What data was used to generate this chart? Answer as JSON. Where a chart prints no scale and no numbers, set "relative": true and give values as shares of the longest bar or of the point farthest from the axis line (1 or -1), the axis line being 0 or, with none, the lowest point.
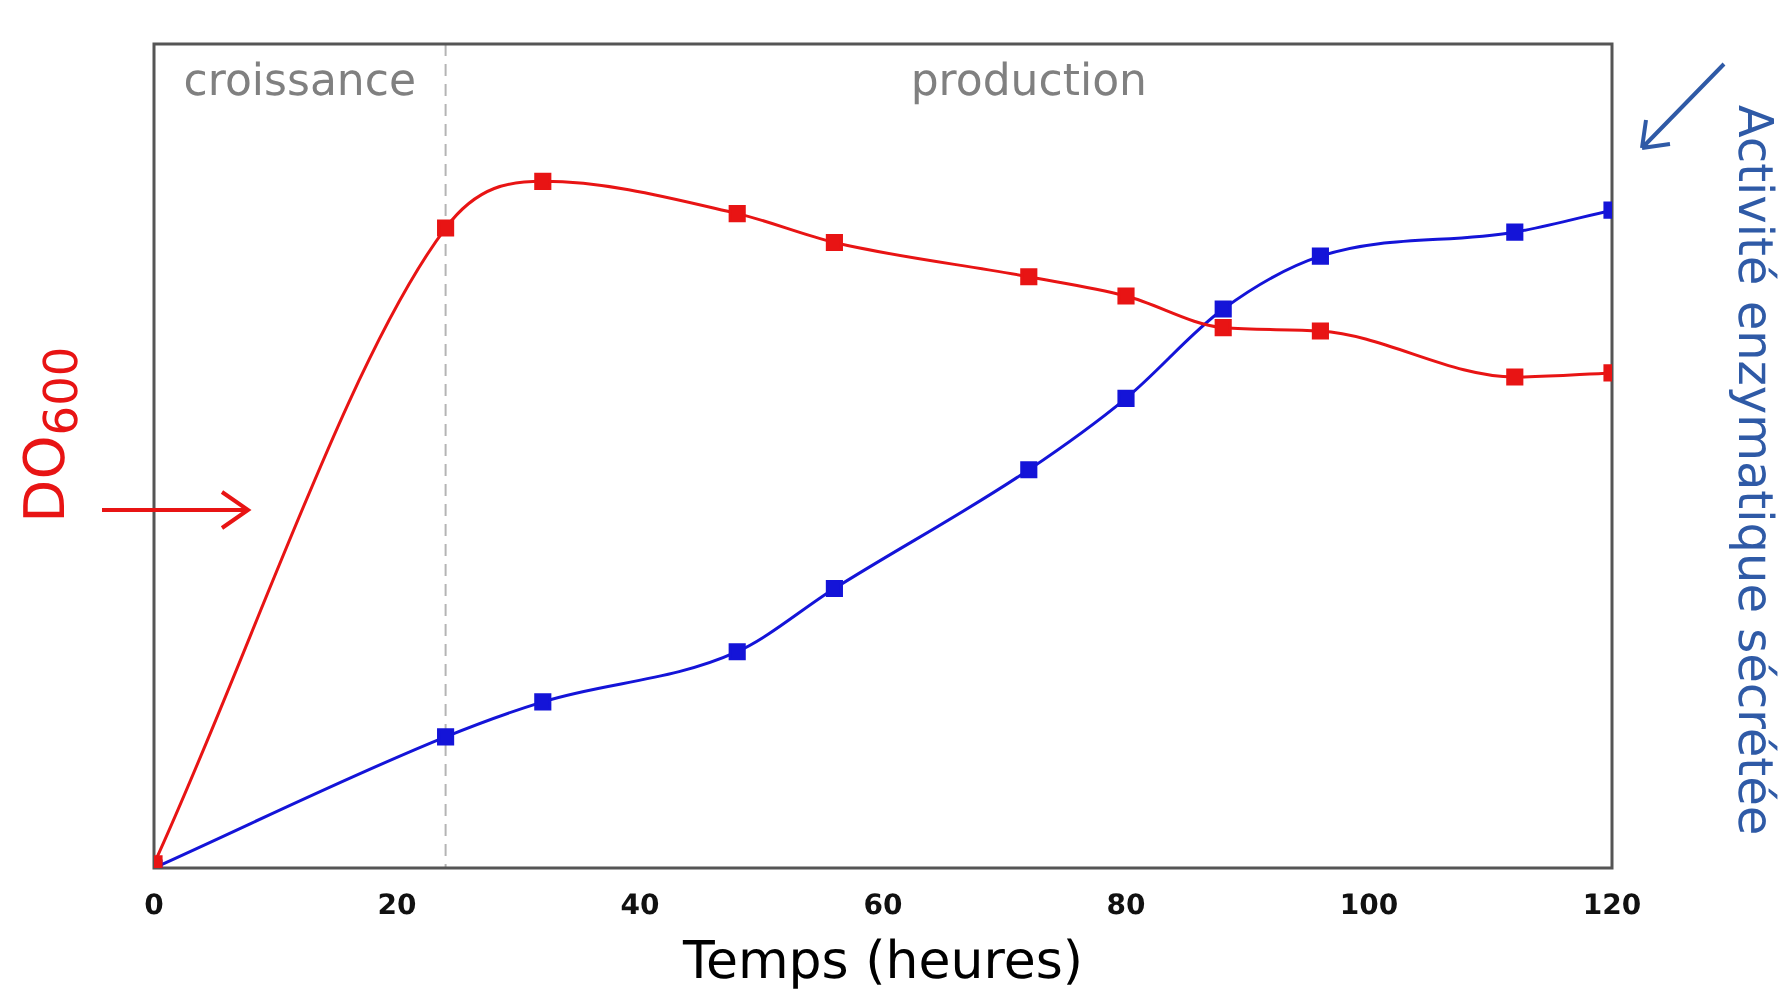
{
  "chart_data": {
    "type": "line",
    "relative": true,
    "xlabel": "Temps (heures)",
    "ylabel": "DO$_{600}$",
    "y2label": "Activité enzymatique sécrétée",
    "x": [
      0,
      24,
      32,
      48,
      56,
      72,
      80,
      88,
      96,
      112,
      120
    ],
    "xlim": [
      0,
      120
    ],
    "xticks": [
      0,
      20,
      40,
      60,
      80,
      100,
      120
    ],
    "series": [
      {
        "color": "#e81414",
        "values": [
          0.006,
          0.932,
          1,
          0.953,
          0.911,
          0.861,
          0.833,
          0.787,
          0.782,
          0.715,
          0.721
        ]
      },
      {
        "color": "#1414d8",
        "values": [
          0,
          0.191,
          0.242,
          0.315,
          0.407,
          0.58,
          0.684,
          0.814,
          0.891,
          0.926,
          0.958
        ]
      }
    ],
    "ref_lines": [
      {
        "axis": "x",
        "value": 24,
        "color": "#b4b4b4",
        "line_style": "dashed"
      }
    ],
    "annotations": [
      "croissance",
      "production"
    ],
    "marker": "square",
    "line_style": "solid",
    "grid": false,
    "legend": false
  }
}
